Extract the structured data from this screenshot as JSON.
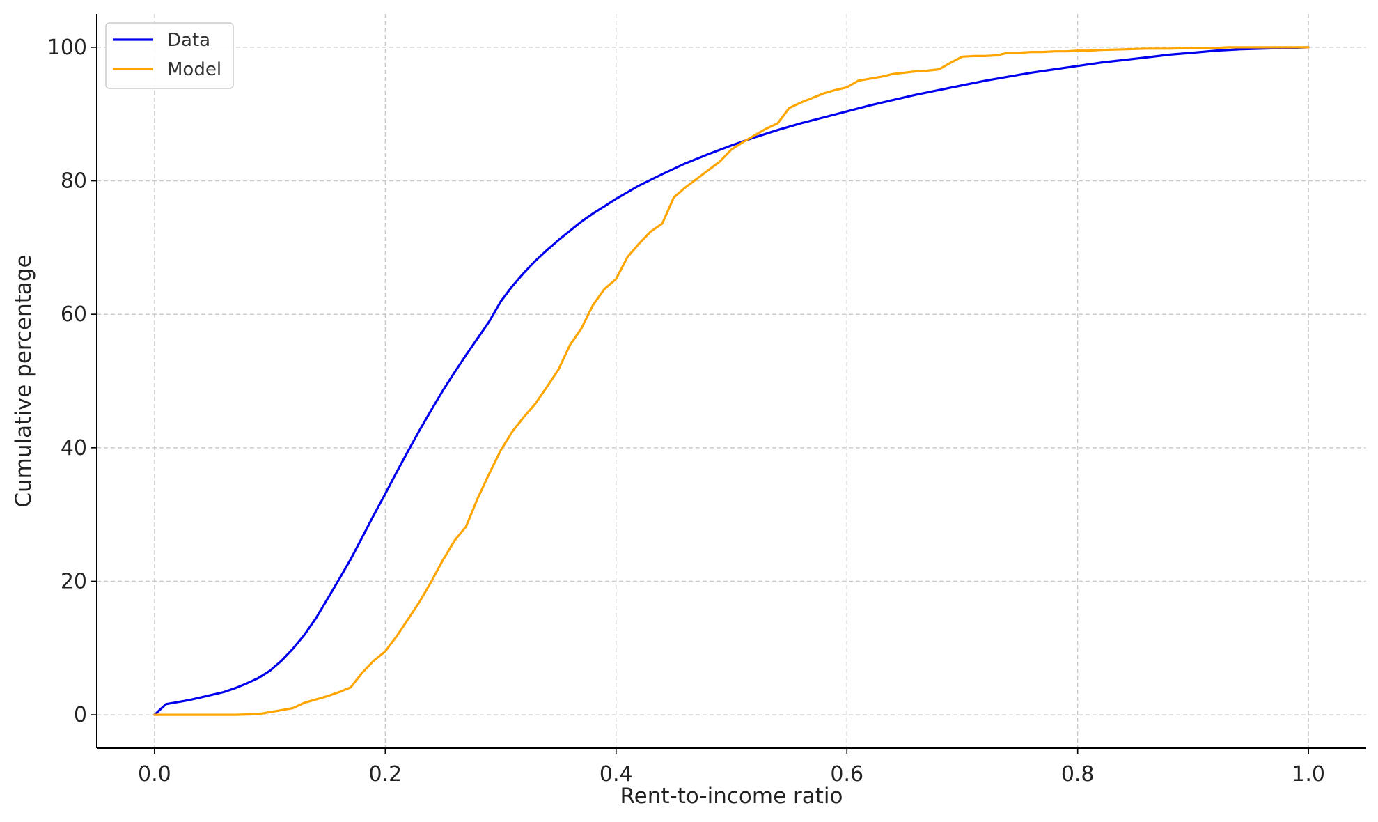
{
  "chart_data": {
    "type": "line",
    "title": "",
    "xlabel": "Rent-to-income ratio",
    "ylabel": "Cumulative percentage",
    "xlim": [
      -0.05,
      1.05
    ],
    "ylim": [
      -5,
      105
    ],
    "xticks": [
      0.0,
      0.2,
      0.4,
      0.6,
      0.8,
      1.0
    ],
    "xtick_labels": [
      "0.0",
      "0.2",
      "0.4",
      "0.6",
      "0.8",
      "1.0"
    ],
    "yticks": [
      0,
      20,
      40,
      60,
      80,
      100
    ],
    "ytick_labels": [
      "0",
      "20",
      "40",
      "60",
      "80",
      "100"
    ],
    "grid": true,
    "legend_position": "top-left",
    "series": [
      {
        "name": "Data",
        "color": "#0000ee",
        "x": [
          0.0,
          0.01,
          0.02,
          0.03,
          0.04,
          0.05,
          0.06,
          0.07,
          0.08,
          0.09,
          0.1,
          0.11,
          0.12,
          0.13,
          0.14,
          0.15,
          0.16,
          0.17,
          0.18,
          0.19,
          0.2,
          0.21,
          0.22,
          0.23,
          0.24,
          0.25,
          0.26,
          0.27,
          0.28,
          0.29,
          0.3,
          0.31,
          0.32,
          0.33,
          0.34,
          0.35,
          0.36,
          0.37,
          0.38,
          0.39,
          0.4,
          0.42,
          0.44,
          0.46,
          0.48,
          0.5,
          0.52,
          0.54,
          0.56,
          0.58,
          0.6,
          0.62,
          0.64,
          0.66,
          0.68,
          0.7,
          0.72,
          0.74,
          0.76,
          0.78,
          0.8,
          0.82,
          0.84,
          0.86,
          0.88,
          0.9,
          0.92,
          0.94,
          0.96,
          0.98,
          1.0
        ],
        "y": [
          0.0,
          1.6,
          1.9,
          2.2,
          2.6,
          3.0,
          3.4,
          4.0,
          4.7,
          5.5,
          6.6,
          8.1,
          9.9,
          12.0,
          14.5,
          17.4,
          20.3,
          23.3,
          26.6,
          29.9,
          33.1,
          36.4,
          39.6,
          42.7,
          45.7,
          48.6,
          51.3,
          53.9,
          56.4,
          58.9,
          61.9,
          64.2,
          66.2,
          68.0,
          69.6,
          71.1,
          72.5,
          73.9,
          75.1,
          76.2,
          77.3,
          79.3,
          81.0,
          82.6,
          84.0,
          85.3,
          86.5,
          87.6,
          88.6,
          89.5,
          90.4,
          91.3,
          92.1,
          92.9,
          93.6,
          94.3,
          95.0,
          95.6,
          96.2,
          96.7,
          97.2,
          97.7,
          98.1,
          98.5,
          98.9,
          99.2,
          99.5,
          99.7,
          99.8,
          99.9,
          100.0
        ]
      },
      {
        "name": "Model",
        "color": "#ffa500",
        "x": [
          0.0,
          0.01,
          0.02,
          0.03,
          0.04,
          0.05,
          0.06,
          0.07,
          0.08,
          0.09,
          0.1,
          0.11,
          0.12,
          0.13,
          0.14,
          0.15,
          0.16,
          0.17,
          0.18,
          0.19,
          0.2,
          0.21,
          0.22,
          0.23,
          0.24,
          0.25,
          0.26,
          0.27,
          0.28,
          0.29,
          0.3,
          0.31,
          0.32,
          0.33,
          0.34,
          0.35,
          0.36,
          0.37,
          0.38,
          0.39,
          0.4,
          0.41,
          0.42,
          0.43,
          0.44,
          0.45,
          0.46,
          0.47,
          0.48,
          0.49,
          0.5,
          0.51,
          0.52,
          0.53,
          0.54,
          0.55,
          0.56,
          0.57,
          0.58,
          0.59,
          0.6,
          0.61,
          0.62,
          0.63,
          0.64,
          0.65,
          0.66,
          0.67,
          0.68,
          0.69,
          0.7,
          0.71,
          0.72,
          0.73,
          0.74,
          0.75,
          0.76,
          0.77,
          0.78,
          0.79,
          0.8,
          0.81,
          0.82,
          0.84,
          0.86,
          0.88,
          0.9,
          0.92,
          0.93,
          0.95,
          0.97,
          0.99,
          1.0
        ],
        "y": [
          0.0,
          0.0,
          0.0,
          0.0,
          0.0,
          0.0,
          0.0,
          0.0,
          0.05,
          0.1,
          0.4,
          0.7,
          1.0,
          1.8,
          2.3,
          2.8,
          3.4,
          4.1,
          6.3,
          8.1,
          9.5,
          11.8,
          14.4,
          17.0,
          20.0,
          23.2,
          26.1,
          28.2,
          32.4,
          36.1,
          39.6,
          42.4,
          44.6,
          46.6,
          49.1,
          51.7,
          55.4,
          57.9,
          61.4,
          63.8,
          65.3,
          68.6,
          70.6,
          72.4,
          73.6,
          77.5,
          79.0,
          80.3,
          81.6,
          82.9,
          84.7,
          85.8,
          86.8,
          87.8,
          88.6,
          90.9,
          91.7,
          92.4,
          93.1,
          93.6,
          94.0,
          95.0,
          95.3,
          95.6,
          96.0,
          96.2,
          96.4,
          96.5,
          96.7,
          97.7,
          98.6,
          98.7,
          98.7,
          98.8,
          99.2,
          99.2,
          99.3,
          99.3,
          99.4,
          99.4,
          99.5,
          99.5,
          99.6,
          99.7,
          99.8,
          99.8,
          99.9,
          99.9,
          100.0,
          100.0,
          100.0,
          100.0,
          100.0
        ]
      }
    ]
  }
}
